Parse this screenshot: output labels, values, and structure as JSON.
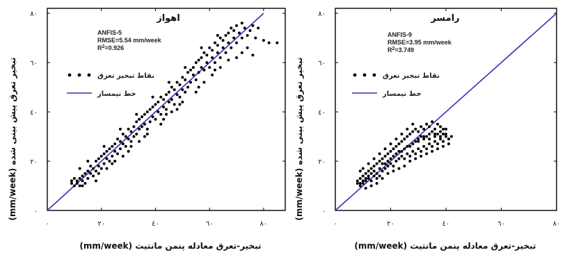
{
  "colors": {
    "line": "#3a2fb5",
    "points": "#000000",
    "frame": "#000000"
  },
  "chart_data": [
    {
      "type": "scatter",
      "title": "اهواز",
      "model": "ANFIS-5",
      "rmse": "RMSE=5.54 mm/week",
      "r2_label": "R",
      "r2_sup": "2",
      "r2_value": "=0.926",
      "xlabel": "تبخیر-تعرق معادله پنمن مانتیث",
      "xlabel_unit": "(mm/week)",
      "ylabel": "تبخیر تعرق پیش بینی شده",
      "ylabel_unit": "(mm/week)",
      "xlim": [
        0,
        88
      ],
      "ylim": [
        0,
        82
      ],
      "xticks": [
        0,
        20,
        40,
        60,
        80
      ],
      "xtick_labels": [
        "٠",
        "٢٠",
        "٤٠",
        "٦٠",
        "٨٠"
      ],
      "yticks": [
        0,
        20,
        40,
        60,
        80
      ],
      "ytick_labels": [
        "٠",
        "٢٠",
        "٤٠",
        "٦٠",
        "٨٠"
      ],
      "legend": [
        {
          "label": "نقاط تبخیر تعرق",
          "kind": "points"
        },
        {
          "label": "خط نیمساز",
          "kind": "line"
        }
      ],
      "bisector": [
        [
          0,
          0
        ],
        [
          80,
          80
        ]
      ],
      "points": [
        [
          9,
          11
        ],
        [
          9,
          12
        ],
        [
          10,
          10
        ],
        [
          10,
          13
        ],
        [
          11,
          11
        ],
        [
          11,
          12
        ],
        [
          12,
          10
        ],
        [
          12,
          13
        ],
        [
          13,
          12
        ],
        [
          13,
          14
        ],
        [
          14,
          11
        ],
        [
          14,
          15
        ],
        [
          15,
          13
        ],
        [
          15,
          16
        ],
        [
          16,
          15
        ],
        [
          16,
          18
        ],
        [
          17,
          14
        ],
        [
          17,
          17
        ],
        [
          18,
          16
        ],
        [
          18,
          20
        ],
        [
          19,
          18
        ],
        [
          19,
          21
        ],
        [
          20,
          17
        ],
        [
          20,
          22
        ],
        [
          21,
          19
        ],
        [
          21,
          23
        ],
        [
          22,
          21
        ],
        [
          22,
          24
        ],
        [
          23,
          20
        ],
        [
          23,
          25
        ],
        [
          24,
          22
        ],
        [
          24,
          26
        ],
        [
          25,
          24
        ],
        [
          25,
          27
        ],
        [
          26,
          23
        ],
        [
          26,
          29
        ],
        [
          27,
          25
        ],
        [
          27,
          28
        ],
        [
          28,
          27
        ],
        [
          28,
          31
        ],
        [
          29,
          26
        ],
        [
          29,
          30
        ],
        [
          30,
          29
        ],
        [
          30,
          33
        ],
        [
          31,
          28
        ],
        [
          31,
          32
        ],
        [
          32,
          30
        ],
        [
          32,
          34
        ],
        [
          33,
          31
        ],
        [
          33,
          36
        ],
        [
          34,
          33
        ],
        [
          34,
          37
        ],
        [
          35,
          34
        ],
        [
          35,
          38
        ],
        [
          36,
          35
        ],
        [
          36,
          39
        ],
        [
          37,
          33
        ],
        [
          37,
          40
        ],
        [
          38,
          36
        ],
        [
          38,
          41
        ],
        [
          39,
          38
        ],
        [
          39,
          42
        ],
        [
          40,
          37
        ],
        [
          40,
          43
        ],
        [
          41,
          40
        ],
        [
          41,
          44
        ],
        [
          42,
          39
        ],
        [
          42,
          46
        ],
        [
          43,
          42
        ],
        [
          43,
          45
        ],
        [
          44,
          41
        ],
        [
          44,
          47
        ],
        [
          45,
          44
        ],
        [
          45,
          48
        ],
        [
          46,
          45
        ],
        [
          46,
          50
        ],
        [
          47,
          43
        ],
        [
          47,
          49
        ],
        [
          48,
          47
        ],
        [
          48,
          52
        ],
        [
          49,
          46
        ],
        [
          49,
          51
        ],
        [
          50,
          49
        ],
        [
          50,
          54
        ],
        [
          51,
          48
        ],
        [
          51,
          53
        ],
        [
          52,
          50
        ],
        [
          52,
          56
        ],
        [
          53,
          52
        ],
        [
          53,
          57
        ],
        [
          54,
          55
        ],
        [
          54,
          58
        ],
        [
          55,
          53
        ],
        [
          55,
          60
        ],
        [
          56,
          56
        ],
        [
          56,
          61
        ],
        [
          57,
          58
        ],
        [
          57,
          62
        ],
        [
          58,
          57
        ],
        [
          58,
          64
        ],
        [
          59,
          60
        ],
        [
          59,
          63
        ],
        [
          60,
          58
        ],
        [
          60,
          66
        ],
        [
          61,
          62
        ],
        [
          61,
          65
        ],
        [
          62,
          60
        ],
        [
          62,
          68
        ],
        [
          63,
          64
        ],
        [
          63,
          67
        ],
        [
          64,
          62
        ],
        [
          64,
          70
        ],
        [
          65,
          66
        ],
        [
          65,
          69
        ],
        [
          66,
          64
        ],
        [
          66,
          71
        ],
        [
          67,
          68
        ],
        [
          67,
          72
        ],
        [
          68,
          66
        ],
        [
          68,
          74
        ],
        [
          69,
          70
        ],
        [
          69,
          73
        ],
        [
          70,
          68
        ],
        [
          70,
          75
        ],
        [
          71,
          72
        ],
        [
          72,
          70
        ],
        [
          72,
          76
        ],
        [
          73,
          74
        ],
        [
          74,
          71
        ],
        [
          75,
          73
        ],
        [
          76,
          75
        ],
        [
          77,
          70
        ],
        [
          78,
          74
        ],
        [
          80,
          69
        ],
        [
          82,
          68
        ],
        [
          85,
          68
        ],
        [
          72,
          64
        ],
        [
          74,
          66
        ],
        [
          76,
          63
        ],
        [
          12,
          17
        ],
        [
          18,
          12
        ],
        [
          24,
          19
        ],
        [
          30,
          24
        ],
        [
          36,
          30
        ],
        [
          42,
          35
        ],
        [
          48,
          41
        ],
        [
          56,
          50
        ],
        [
          64,
          58
        ],
        [
          70,
          62
        ],
        [
          15,
          20
        ],
        [
          21,
          26
        ],
        [
          27,
          33
        ],
        [
          33,
          39
        ],
        [
          39,
          46
        ],
        [
          45,
          52
        ],
        [
          51,
          58
        ],
        [
          57,
          66
        ],
        [
          63,
          71
        ],
        [
          13,
          10
        ],
        [
          19,
          15
        ],
        [
          25,
          20
        ],
        [
          31,
          26
        ],
        [
          37,
          31
        ],
        [
          43,
          37
        ],
        [
          49,
          43
        ],
        [
          55,
          48
        ],
        [
          61,
          55
        ],
        [
          67,
          61
        ],
        [
          22,
          17
        ],
        [
          28,
          22
        ],
        [
          34,
          28
        ],
        [
          46,
          40
        ],
        [
          58,
          52
        ],
        [
          62,
          57
        ],
        [
          50,
          44
        ],
        [
          44,
          39
        ]
      ]
    },
    {
      "type": "scatter",
      "title": "رامسر",
      "model": "ANFIS-9",
      "rmse": "RMSE=3.95 mm/week",
      "r2_label": "R",
      "r2_sup": "2",
      "r2_value": "=3.749",
      "xlabel": "تبخیر-تعرق معادله پنمن مانتیث",
      "xlabel_unit": "(mm/week)",
      "ylabel": "تبخیر تعرق پیش بینی شده",
      "ylabel_unit": "(mm/week)",
      "xlim": [
        0,
        80
      ],
      "ylim": [
        0,
        82
      ],
      "xticks": [
        0,
        20,
        40,
        60,
        80
      ],
      "xtick_labels": [
        "٠",
        "٢٠",
        "٤٠",
        "٦٠",
        "٨٠"
      ],
      "yticks": [
        0,
        20,
        40,
        60,
        80
      ],
      "ytick_labels": [
        "٠",
        "٢٠",
        "٤٠",
        "٦٠",
        "٨٠"
      ],
      "legend": [
        {
          "label": "نقاط تبخیر تعرق",
          "kind": "points"
        },
        {
          "label": "خط نیمساز",
          "kind": "line"
        }
      ],
      "bisector": [
        [
          0,
          0
        ],
        [
          80,
          80
        ]
      ],
      "points": [
        [
          8,
          11
        ],
        [
          8,
          12
        ],
        [
          9,
          10
        ],
        [
          9,
          13
        ],
        [
          10,
          11
        ],
        [
          10,
          14
        ],
        [
          11,
          12
        ],
        [
          11,
          15
        ],
        [
          12,
          13
        ],
        [
          12,
          16
        ],
        [
          13,
          12
        ],
        [
          13,
          17
        ],
        [
          14,
          14
        ],
        [
          14,
          18
        ],
        [
          15,
          15
        ],
        [
          15,
          19
        ],
        [
          16,
          14
        ],
        [
          16,
          20
        ],
        [
          17,
          16
        ],
        [
          17,
          21
        ],
        [
          18,
          17
        ],
        [
          18,
          22
        ],
        [
          19,
          18
        ],
        [
          19,
          23
        ],
        [
          20,
          19
        ],
        [
          20,
          24
        ],
        [
          21,
          18
        ],
        [
          21,
          25
        ],
        [
          22,
          20
        ],
        [
          22,
          26
        ],
        [
          23,
          21
        ],
        [
          23,
          27
        ],
        [
          24,
          22
        ],
        [
          24,
          28
        ],
        [
          25,
          21
        ],
        [
          25,
          29
        ],
        [
          26,
          23
        ],
        [
          26,
          30
        ],
        [
          27,
          22
        ],
        [
          27,
          31
        ],
        [
          28,
          24
        ],
        [
          28,
          32
        ],
        [
          29,
          23
        ],
        [
          29,
          33
        ],
        [
          30,
          25
        ],
        [
          30,
          32
        ],
        [
          31,
          24
        ],
        [
          31,
          34
        ],
        [
          32,
          26
        ],
        [
          32,
          33
        ],
        [
          33,
          25
        ],
        [
          33,
          35
        ],
        [
          34,
          27
        ],
        [
          34,
          34
        ],
        [
          35,
          26
        ],
        [
          35,
          36
        ],
        [
          36,
          28
        ],
        [
          36,
          33
        ],
        [
          37,
          27
        ],
        [
          37,
          35
        ],
        [
          38,
          29
        ],
        [
          38,
          34
        ],
        [
          39,
          28
        ],
        [
          39,
          31
        ],
        [
          40,
          30
        ],
        [
          41,
          29
        ],
        [
          9,
          16
        ],
        [
          10,
          17
        ],
        [
          11,
          9
        ],
        [
          12,
          19
        ],
        [
          13,
          10
        ],
        [
          14,
          21
        ],
        [
          15,
          11
        ],
        [
          16,
          23
        ],
        [
          17,
          13
        ],
        [
          18,
          25
        ],
        [
          19,
          15
        ],
        [
          20,
          27
        ],
        [
          21,
          16
        ],
        [
          22,
          29
        ],
        [
          23,
          17
        ],
        [
          24,
          31
        ],
        [
          25,
          18
        ],
        [
          26,
          33
        ],
        [
          27,
          20
        ],
        [
          28,
          35
        ],
        [
          29,
          21
        ],
        [
          30,
          29
        ],
        [
          31,
          22
        ],
        [
          32,
          30
        ],
        [
          33,
          23
        ],
        [
          34,
          31
        ],
        [
          35,
          24
        ],
        [
          36,
          30
        ],
        [
          37,
          25
        ],
        [
          38,
          32
        ],
        [
          39,
          26
        ],
        [
          40,
          33
        ],
        [
          41,
          27
        ],
        [
          42,
          30
        ],
        [
          10,
          12
        ],
        [
          12,
          14
        ],
        [
          14,
          16
        ],
        [
          16,
          17
        ],
        [
          18,
          19
        ],
        [
          20,
          21
        ],
        [
          22,
          23
        ],
        [
          24,
          24
        ],
        [
          26,
          26
        ],
        [
          28,
          27
        ],
        [
          30,
          28
        ],
        [
          32,
          29
        ],
        [
          34,
          29
        ],
        [
          36,
          31
        ],
        [
          38,
          30
        ],
        [
          40,
          31
        ],
        [
          15,
          13
        ],
        [
          17,
          19
        ],
        [
          19,
          20
        ],
        [
          21,
          22
        ],
        [
          23,
          24
        ],
        [
          25,
          25
        ],
        [
          27,
          26
        ],
        [
          29,
          28
        ],
        [
          31,
          30
        ],
        [
          33,
          30
        ],
        [
          35,
          32
        ],
        [
          37,
          31
        ],
        [
          39,
          33
        ],
        [
          13,
          15
        ],
        [
          11,
          13
        ],
        [
          9,
          11
        ]
      ]
    }
  ]
}
